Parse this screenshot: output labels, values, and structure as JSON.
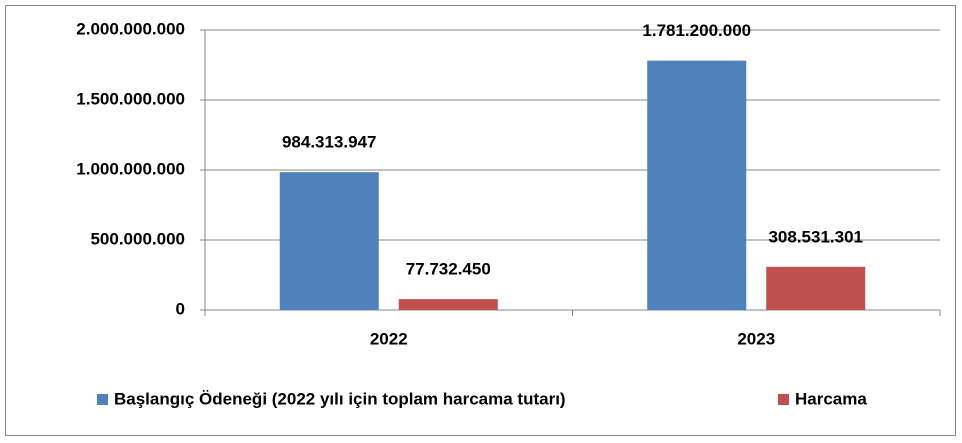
{
  "chart_data": {
    "type": "bar",
    "categories": [
      "2022",
      "2023"
    ],
    "series": [
      {
        "name": "Başlangıç Ödeneği (2022 yılı için toplam harcama tutarı)",
        "color": "#4f81bd",
        "values": [
          984313947,
          1781200000
        ],
        "value_labels": [
          "984.313.947",
          "1.781.200.000"
        ]
      },
      {
        "name": "Harcama",
        "color": "#c0504d",
        "values": [
          77732450,
          308531301
        ],
        "value_labels": [
          "77.732.450",
          "308.531.301"
        ]
      }
    ],
    "ylim": [
      0,
      2000000000
    ],
    "yticks": [
      0,
      {
        "value": 500000000,
        "label": "500.000.000"
      },
      {
        "value": 1000000000,
        "label": "1.000.000.000"
      },
      {
        "value": 1500000000,
        "label": "1.500.000.000"
      },
      {
        "value": 2000000000,
        "label": "2.000.000.000"
      }
    ],
    "grid": true,
    "legend": "bottom"
  }
}
